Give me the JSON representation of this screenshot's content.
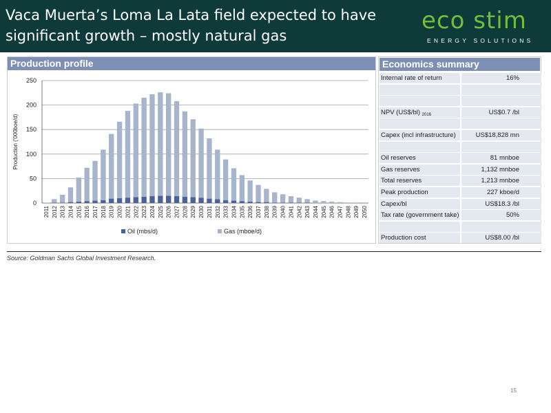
{
  "slide": {
    "title_line1": "Vaca Muerta’s Loma La Lata field expected to have",
    "title_line2": "significant growth – mostly natural gas",
    "logo_main": "eco stim",
    "logo_sub": "ENERGY SOLUTIONS",
    "source": "Source: Goldman Sachs Global Investment Research.",
    "page_number": "15",
    "colors": {
      "header_bg": "#0e3a3a",
      "panel_head": "#7e8fb5",
      "oil": "#4a6296",
      "gas": "#a6b4cc",
      "logo_green": "#6fbf3a"
    }
  },
  "production_panel": {
    "heading": "Production profile"
  },
  "economics": {
    "heading": "Economics summary",
    "rows": [
      {
        "label": "Internal rate of return",
        "value": "16%"
      },
      {
        "label": "",
        "value": ""
      },
      {
        "label": "",
        "value": ""
      },
      {
        "label": "NPV (US$/bl)",
        "label_sub": "2016",
        "value": "US$0.7 /bl"
      },
      {
        "label": "",
        "value": ""
      },
      {
        "label": "Capex (incl infrastructure)",
        "value": "US$18,828 mn"
      },
      {
        "label": "",
        "value": ""
      },
      {
        "label": "Oil reserves",
        "value": "81 mnboe"
      },
      {
        "label": "Gas reserves",
        "value": "1,132 mnboe"
      },
      {
        "label": "Total reserves",
        "value": "1,213 mnboe"
      },
      {
        "label": "Peak production",
        "value": "227 kboe/d"
      },
      {
        "label": "Capex/bl",
        "value": "US$18.3 /bl"
      },
      {
        "label": "Tax rate (government take)",
        "value": "50%"
      },
      {
        "label": "",
        "value": ""
      },
      {
        "label": "Production cost",
        "value": "US$8.00 /bl"
      }
    ]
  },
  "chart_data": {
    "type": "bar",
    "stacked": true,
    "title": "",
    "xlabel": "",
    "ylabel": "Production ('000boe/d)",
    "ylim": [
      0,
      250
    ],
    "yticks": [
      0,
      50,
      100,
      150,
      200,
      250
    ],
    "grid": true,
    "legend_position": "bottom",
    "categories": [
      "2011",
      "2012",
      "2013",
      "2014",
      "2015",
      "2016",
      "2017",
      "2018",
      "2019",
      "2020",
      "2021",
      "2022",
      "2023",
      "2024",
      "2025",
      "2026",
      "2027",
      "2028",
      "2029",
      "2030",
      "2031",
      "2032",
      "2033",
      "2034",
      "2035",
      "2036",
      "2037",
      "2038",
      "2039",
      "2040",
      "2041",
      "2042",
      "2043",
      "2044",
      "2045",
      "2046",
      "2047",
      "2048",
      "2049",
      "2050"
    ],
    "series": [
      {
        "name": "Oil (mbs/d)",
        "color": "#4a6296",
        "values": [
          0,
          1,
          1,
          2,
          3,
          4,
          5,
          6,
          9,
          10,
          11,
          12,
          13,
          14,
          15,
          15,
          14,
          13,
          12,
          11,
          9,
          8,
          6,
          5,
          4,
          3,
          2,
          2,
          1,
          1,
          1,
          1,
          1,
          0,
          0,
          0,
          0,
          0,
          0,
          0
        ]
      },
      {
        "name": "Gas (mboe/d)",
        "color": "#a6b4cc",
        "values": [
          1,
          7,
          16,
          30,
          49,
          68,
          81,
          103,
          132,
          156,
          177,
          191,
          202,
          208,
          211,
          209,
          194,
          174,
          159,
          141,
          123,
          101,
          83,
          66,
          53,
          43,
          35,
          27,
          21,
          17,
          13,
          10,
          7,
          5,
          4,
          3,
          2,
          1,
          1,
          1
        ]
      }
    ]
  }
}
